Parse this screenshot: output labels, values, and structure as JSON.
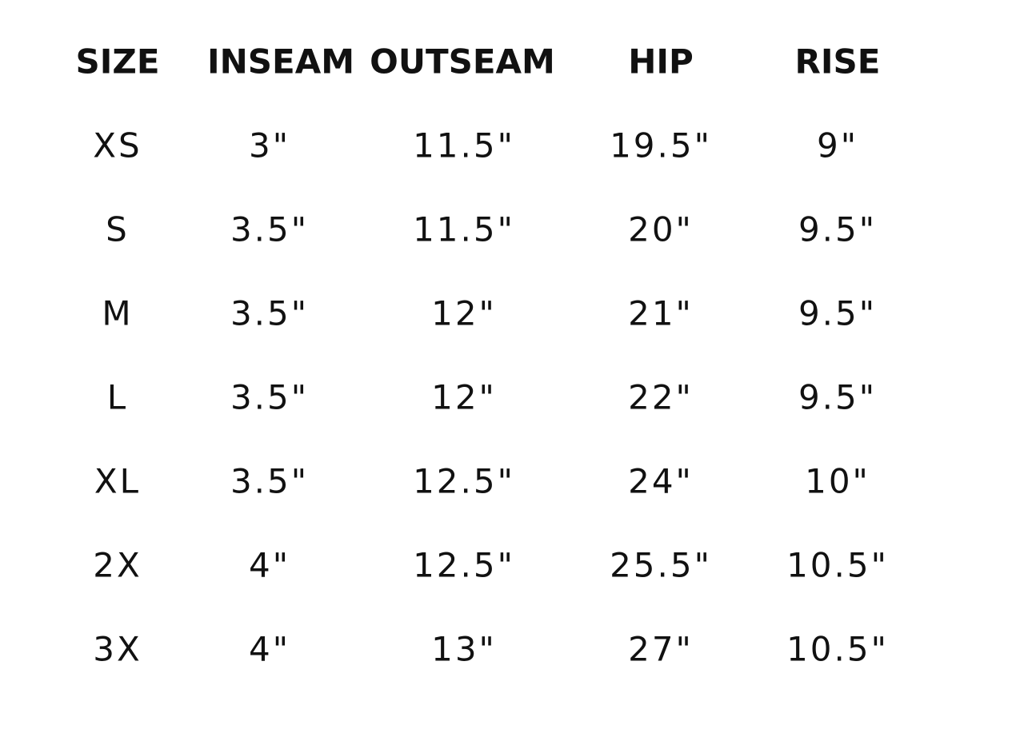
{
  "table": {
    "headers": [
      "SIZE",
      "INSEAM",
      "OUTSEAM",
      "HIP",
      "RISE"
    ],
    "rows": [
      [
        "XS",
        "3\"",
        "11.5\"",
        "19.5\"",
        "9\""
      ],
      [
        "S",
        "3.5\"",
        "11.5\"",
        "20\"",
        "9.5\""
      ],
      [
        "M",
        "3.5\"",
        "12\"",
        "21\"",
        "9.5\""
      ],
      [
        "L",
        "3.5\"",
        "12\"",
        "22\"",
        "9.5\""
      ],
      [
        "XL",
        "3.5\"",
        "12.5\"",
        "24\"",
        "10\""
      ],
      [
        "2X",
        "4\"",
        "12.5\"",
        "25.5\"",
        "10.5\""
      ],
      [
        "3X",
        "4\"",
        "13\"",
        "27\"",
        "10.5\""
      ]
    ]
  }
}
